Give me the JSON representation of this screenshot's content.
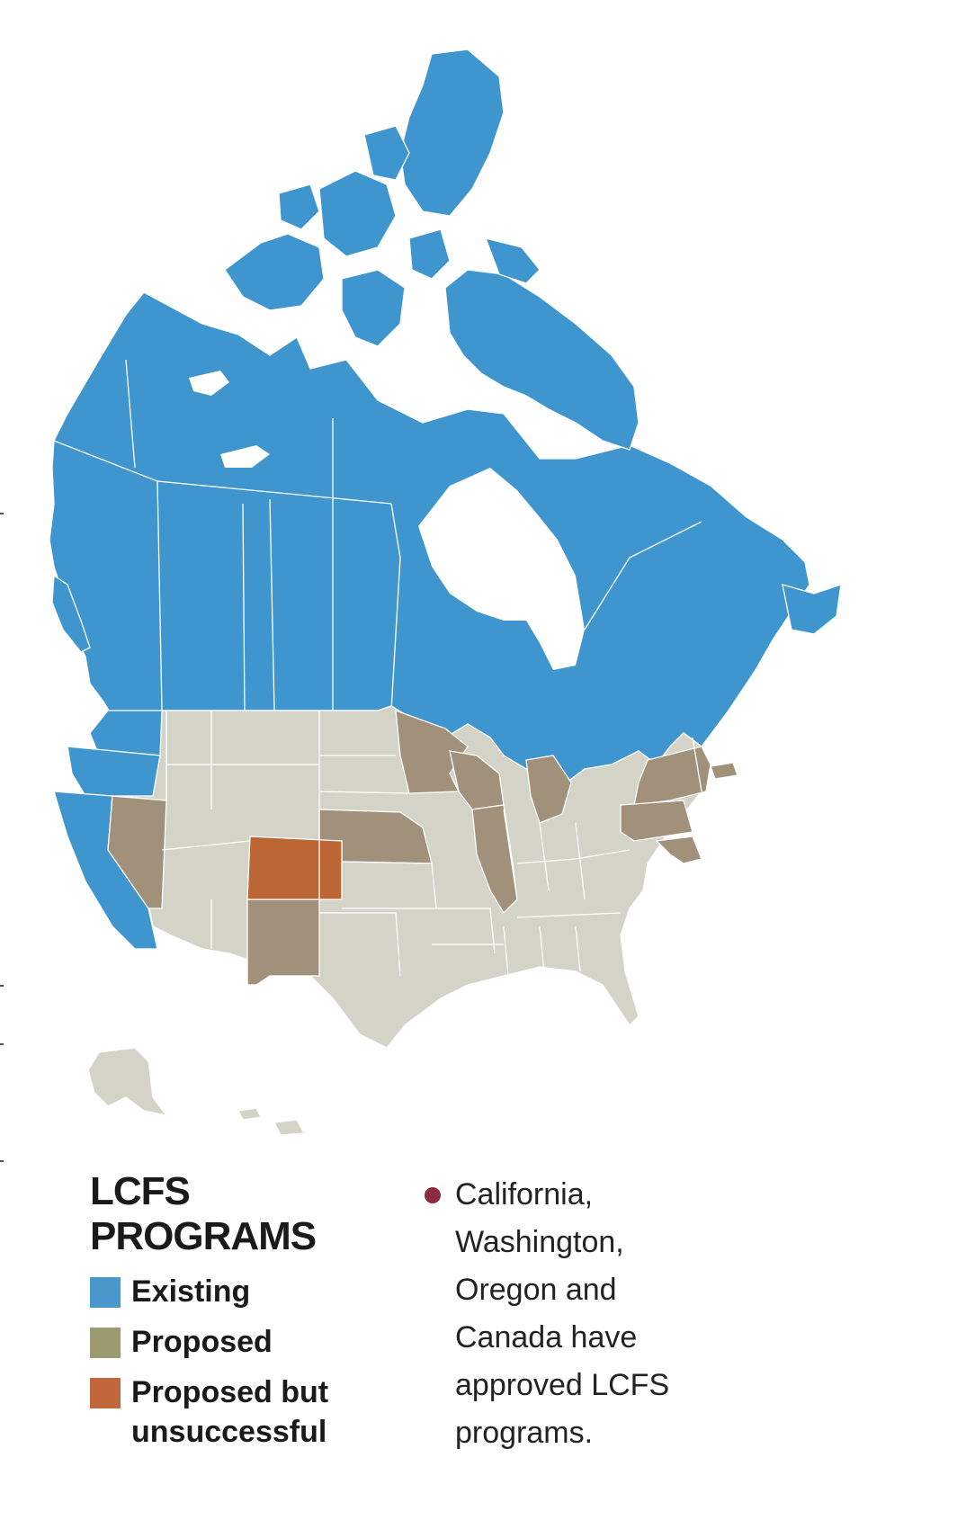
{
  "colors": {
    "existing": "#3f96cf",
    "proposed": "#a1917b",
    "unsuccessful": "#bc6535",
    "not_proposed": "#d3d4c7",
    "note_dot": "#8c2a3e",
    "border": "#ffffff"
  },
  "legend": {
    "title": "LCFS PROGRAMS",
    "items": [
      {
        "key": "existing",
        "label": "Existing",
        "color": "#4a97cc"
      },
      {
        "key": "proposed",
        "label": "Proposed",
        "color": "#9c9a70"
      },
      {
        "key": "unsuccessful",
        "label": "Proposed but\nunsuccessful",
        "color": "#c0683b"
      }
    ]
  },
  "note": {
    "text": "California,\nWashington,\nOregon and\nCanada have\napproved LCFS\nprograms."
  },
  "regions": {
    "existing": [
      "Canada",
      "Washington",
      "Oregon",
      "California"
    ],
    "proposed": [
      "Nevada",
      "Nebraska",
      "New Mexico",
      "Minnesota",
      "Wisconsin",
      "Illinois",
      "Michigan",
      "New York",
      "Pennsylvania",
      "Maryland",
      "Massachusetts"
    ],
    "unsuccessful": [
      "Colorado"
    ]
  }
}
